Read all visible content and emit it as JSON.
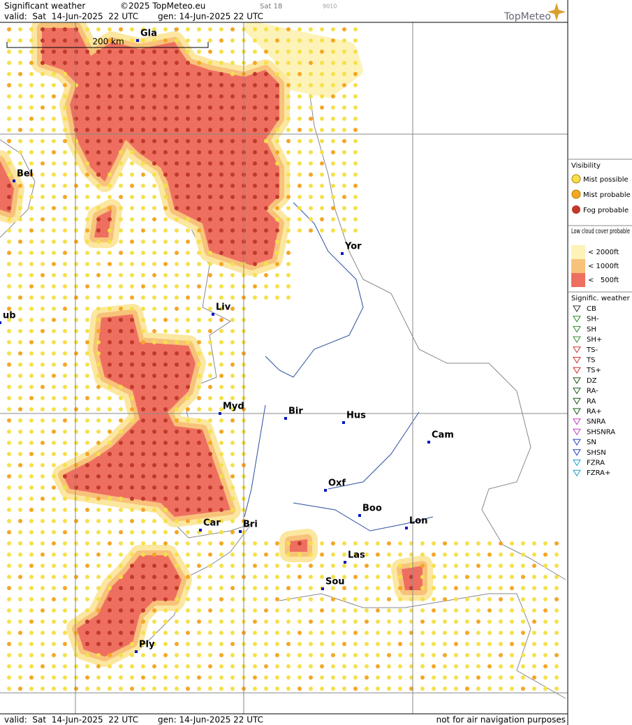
{
  "header": {
    "title": "Significant weather",
    "copyright": "©2025 TopMeteo.eu",
    "day": "Sat 18",
    "code": "9010",
    "valid": "valid:  Sat  14-Jun-2025  22 UTC",
    "gen": "gen: 14-Jun-2025 22 UTC",
    "logo": "TopMeteo"
  },
  "map": {
    "scale": "200 km",
    "cities": [
      "Gla",
      "Bel",
      "Yor",
      "Liv",
      "ub",
      "Myd",
      "Bir",
      "Hus",
      "Cam",
      "Oxf",
      "Boo",
      "Lon",
      "Car",
      "Bri",
      "Las",
      "Sou",
      "Ply"
    ]
  },
  "legend": {
    "visibility": {
      "title": "Visibility",
      "items": [
        "Mist possible",
        "Mist probable",
        "Fog probable"
      ]
    },
    "low_cloud": {
      "title": "Low cloud cover probable",
      "items": [
        "< 2000ft",
        "< 1000ft",
        "<   500ft"
      ]
    },
    "weather": {
      "title": "Signific. weather",
      "items": [
        "CB",
        "SH-",
        "SH",
        "SH+",
        "TS-",
        "TS",
        "TS+",
        "DZ",
        "RA-",
        "RA",
        "RA+",
        "SNRA",
        "SHSNRA",
        "SN",
        "SHSN",
        "FZRA",
        "FZRA+"
      ]
    }
  },
  "footer": {
    "valid": "valid:  Sat  14-Jun-2025  22 UTC",
    "gen": "gen: 14-Jun-2025 22 UTC",
    "note": "not for air navigation purposes"
  }
}
